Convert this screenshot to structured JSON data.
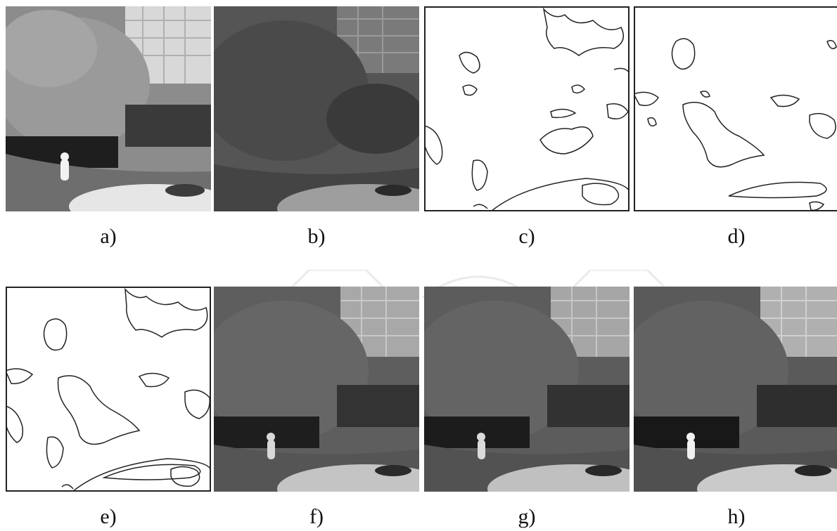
{
  "panels": [
    {
      "id": "a",
      "caption": "a)",
      "kind": "infrared"
    },
    {
      "id": "b",
      "caption": "b)",
      "kind": "visible"
    },
    {
      "id": "c",
      "caption": "c)",
      "kind": "edge-map"
    },
    {
      "id": "d",
      "caption": "d)",
      "kind": "edge-map"
    },
    {
      "id": "e",
      "caption": "e)",
      "kind": "edge-map"
    },
    {
      "id": "f",
      "caption": "f)",
      "kind": "fused"
    },
    {
      "id": "g",
      "caption": "g)",
      "kind": "fused"
    },
    {
      "id": "h",
      "caption": "h)",
      "kind": "fused"
    }
  ],
  "colors": {
    "background": "#ffffff",
    "edge_line": "#222222",
    "caption_text": "#111111"
  }
}
